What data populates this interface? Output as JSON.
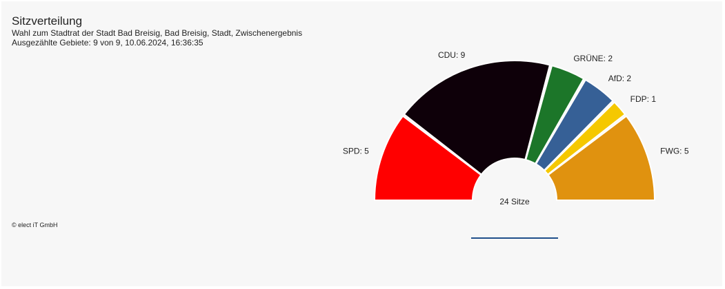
{
  "title": "Sitzverteilung",
  "subtitle_line1": "Wahl zum Stadtrat der Stadt Bad Breisig, Bad Breisig, Stadt, Zwischenergebnis",
  "subtitle_line2": "Ausgezählte Gebiete: 9 von 9, 10.06.2024, 16:36:35",
  "copyright": "© elect iT GmbH",
  "chart_data": {
    "type": "pie",
    "variant": "half-donut parliament",
    "total_label": "24 Sitze",
    "total": 24,
    "series": [
      {
        "name": "SPD",
        "label": "SPD: 5",
        "value": 5,
        "color": "#ff0000"
      },
      {
        "name": "CDU",
        "label": "CDU: 9",
        "value": 9,
        "color": "#0e0009"
      },
      {
        "name": "GRÜNE",
        "label": "GRÜNE: 2",
        "value": 2,
        "color": "#1c7629"
      },
      {
        "name": "AfD",
        "label": "AfD: 2",
        "value": 2,
        "color": "#366096"
      },
      {
        "name": "FDP",
        "label": "FDP: 1",
        "value": 1,
        "color": "#f5c800"
      },
      {
        "name": "FWG",
        "label": "FWG: 5",
        "value": 5,
        "color": "#e0920f"
      }
    ]
  }
}
